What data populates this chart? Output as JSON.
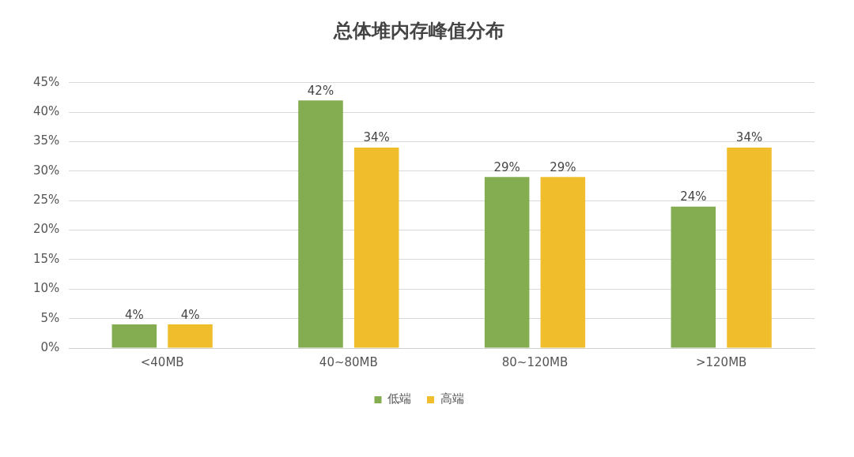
{
  "chart_data": {
    "type": "bar",
    "title": "总体堆内存峰值分布",
    "categories": [
      "<40MB",
      "40~80MB",
      "80~120MB",
      ">120MB"
    ],
    "series": [
      {
        "name": "低端",
        "color": "#84ac50",
        "values": [
          4,
          42,
          29,
          24
        ],
        "value_labels": [
          "4%",
          "42%",
          "29%",
          "24%"
        ]
      },
      {
        "name": "高端",
        "color": "#f0be2c",
        "values": [
          4,
          34,
          29,
          34
        ],
        "value_labels": [
          "4%",
          "34%",
          "29%",
          "34%"
        ]
      }
    ],
    "ylim": [
      0,
      45
    ],
    "yticks": [
      {
        "value": 0,
        "label": "0%"
      },
      {
        "value": 5,
        "label": "5%"
      },
      {
        "value": 10,
        "label": "10%"
      },
      {
        "value": 15,
        "label": "15%"
      },
      {
        "value": 20,
        "label": "20%"
      },
      {
        "value": 25,
        "label": "25%"
      },
      {
        "value": 30,
        "label": "30%"
      },
      {
        "value": 35,
        "label": "35%"
      },
      {
        "value": 40,
        "label": "40%"
      },
      {
        "value": 45,
        "label": "45%"
      }
    ],
    "grid": "y",
    "legend": "bottom"
  }
}
